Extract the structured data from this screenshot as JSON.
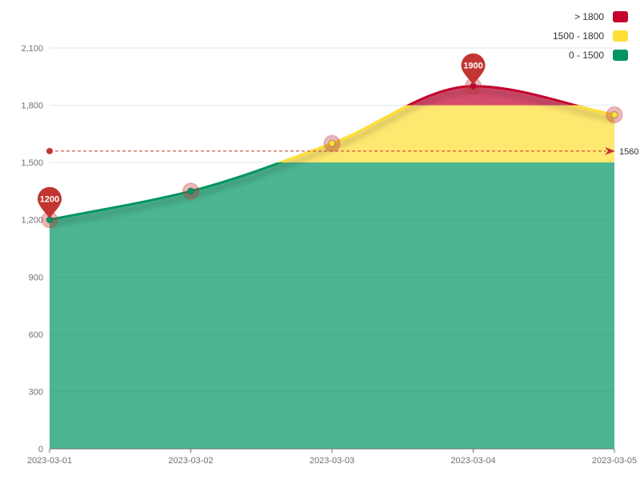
{
  "chart_data": {
    "type": "area",
    "x": [
      "2023-03-01",
      "2023-03-02",
      "2023-03-03",
      "2023-03-04",
      "2023-03-05"
    ],
    "values": [
      1200,
      1350,
      1600,
      1900,
      1750
    ],
    "ylim": [
      0,
      2100
    ],
    "y_ticks": [
      0,
      300,
      600,
      900,
      1200,
      1500,
      1800,
      2100
    ],
    "y_tick_labels": [
      "0",
      "300",
      "600",
      "900",
      "1,200",
      "1,500",
      "1,800",
      "2,100"
    ],
    "grid": true,
    "legend_position": "top-right",
    "visual_map": [
      {
        "label": "> 1800",
        "min": 1800,
        "max": 2100,
        "color": "#c5002e"
      },
      {
        "label": "1500 - 1800",
        "min": 1500,
        "max": 1800,
        "color": "#ffde33"
      },
      {
        "label": "0 - 1500",
        "min": 0,
        "max": 1500,
        "color": "#009562"
      }
    ],
    "mark_points": [
      {
        "label": "1200",
        "x": "2023-03-01",
        "value": 1200
      },
      {
        "label": "1900",
        "x": "2023-03-04",
        "value": 1900
      }
    ],
    "mark_line": {
      "label": "1560",
      "value": 1560
    }
  }
}
